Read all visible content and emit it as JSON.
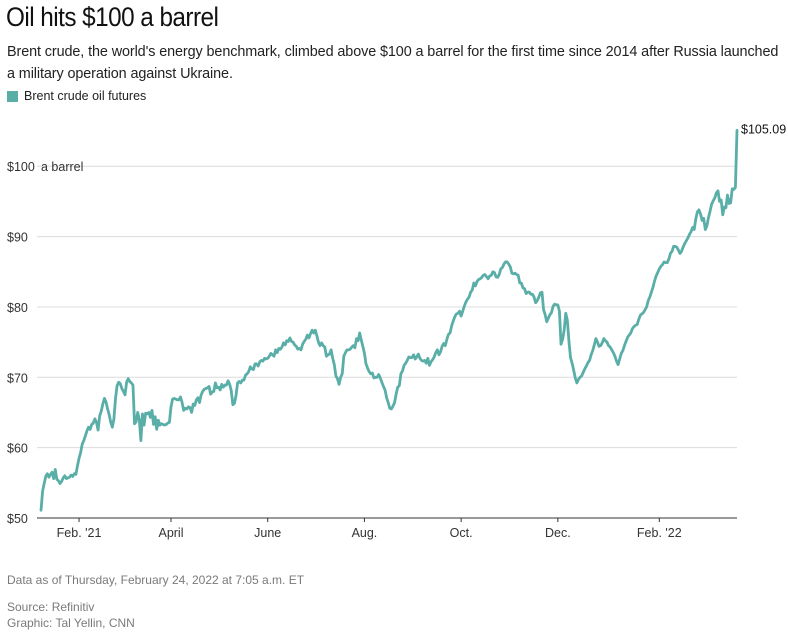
{
  "header": {
    "title": "Oil hits $100 a barrel",
    "subtitle": "Brent crude, the world's energy benchmark, climbed above $100 a barrel for the first time since 2014 after Russia launched a military operation against Ukraine."
  },
  "legend": {
    "label": "Brent crude oil futures",
    "color": "#5aaea8"
  },
  "footer": {
    "note": "Data as of Thursday, February 24, 2022 at 7:05 a.m. ET",
    "source": "Source: Refinitiv",
    "graphic": "Graphic: Tal Yellin, CNN"
  },
  "chart_data": {
    "type": "line",
    "title": "Oil hits $100 a barrel",
    "series_name": "Brent crude oil futures",
    "color": "#5aaea8",
    "ylim": [
      50,
      107
    ],
    "yticks": [
      {
        "value": 50,
        "label": "$50"
      },
      {
        "value": 60,
        "label": "$60"
      },
      {
        "value": 70,
        "label": "$70"
      },
      {
        "value": 80,
        "label": "$80"
      },
      {
        "value": 90,
        "label": "$90"
      },
      {
        "value": 100,
        "label": "$100"
      }
    ],
    "ylabel_suffix": "a barrel",
    "xticks": [
      {
        "index": 24,
        "label": "Feb. '21"
      },
      {
        "index": 82,
        "label": "April"
      },
      {
        "index": 143,
        "label": "June"
      },
      {
        "index": 204,
        "label": "Aug."
      },
      {
        "index": 265,
        "label": "Oct."
      },
      {
        "index": 326,
        "label": "Dec."
      },
      {
        "index": 390,
        "label": "Feb. '22"
      }
    ],
    "end_label": "$105.09",
    "x_start": "2021-01-04",
    "x_end": "2022-02-24",
    "values": [
      51.1,
      53.8,
      54.9,
      55.9,
      56.3,
      55.8,
      56.2,
      56.5,
      55.6,
      56.9,
      55.5,
      55.3,
      54.9,
      55.2,
      55.7,
      56.0,
      55.6,
      55.7,
      55.8,
      56.1,
      55.9,
      56.3,
      56.2,
      57.4,
      58.5,
      59.3,
      60.5,
      61.0,
      61.7,
      62.4,
      62.9,
      62.6,
      63.3,
      63.5,
      64.1,
      63.6,
      62.5,
      64.5,
      65.2,
      66.2,
      67.0,
      66.5,
      65.5,
      64.7,
      63.6,
      62.9,
      64.1,
      67.0,
      68.8,
      69.3,
      69.1,
      68.4,
      68.0,
      67.5,
      69.3,
      69.8,
      69.4,
      69.2,
      68.9,
      63.4,
      63.7,
      65.0,
      64.0,
      61.0,
      64.8,
      63.2,
      64.9,
      64.8,
      65.0,
      64.3,
      65.3,
      63.3,
      64.4,
      62.6,
      63.9,
      63.2,
      63.4,
      63.3,
      63.2,
      63.3,
      63.5,
      63.6,
      65.8,
      66.9,
      67.0,
      66.9,
      66.8,
      66.8,
      67.2,
      66.4,
      65.3,
      65.6,
      65.5,
      65.8,
      65.7,
      65.0,
      66.2,
      66.0,
      66.8,
      67.1,
      66.4,
      67.5,
      68.0,
      68.3,
      68.4,
      68.5,
      68.7,
      67.6,
      67.9,
      68.0,
      69.2,
      68.5,
      68.6,
      68.2,
      69.0,
      68.6,
      68.9,
      68.9,
      69.5,
      69.0,
      68.1,
      66.1,
      66.3,
      67.4,
      69.2,
      69.4,
      69.2,
      69.6,
      69.6,
      70.3,
      70.5,
      70.8,
      71.5,
      71.2,
      71.1,
      71.9,
      71.9,
      71.6,
      72.2,
      72.4,
      72.3,
      72.7,
      72.6,
      72.7,
      73.0,
      73.4,
      73.2,
      73.0,
      73.9,
      73.5,
      74.1,
      74.0,
      74.3,
      74.9,
      74.6,
      75.2,
      75.1,
      75.6,
      75.1,
      75.0,
      74.6,
      74.4,
      74.0,
      74.1,
      73.9,
      74.7,
      75.1,
      75.4,
      76.0,
      75.6,
      76.2,
      76.7,
      76.3,
      76.7,
      75.9,
      75.0,
      74.5,
      74.9,
      74.5,
      74.3,
      73.0,
      73.2,
      73.3,
      73.9,
      72.7,
      71.8,
      70.2,
      69.8,
      69.0,
      70.0,
      70.5,
      73.0,
      73.5,
      73.9,
      73.9,
      74.0,
      74.3,
      74.5,
      74.2,
      75.5,
      75.2,
      76.3,
      75.3,
      74.4,
      73.4,
      71.9,
      71.3,
      70.8,
      70.5,
      70.6,
      69.9,
      70.0,
      70.0,
      70.4,
      69.9,
      69.3,
      68.7,
      68.2,
      67.1,
      66.4,
      65.6,
      65.5,
      65.9,
      66.4,
      67.6,
      68.6,
      68.8,
      70.5,
      70.9,
      71.7,
      72.0,
      72.4,
      72.9,
      72.8,
      72.8,
      73.2,
      72.6,
      72.9,
      73.3,
      72.7,
      72.4,
      72.3,
      72.4,
      72.0,
      72.7,
      71.7,
      72.2,
      72.5,
      72.9,
      73.5,
      73.9,
      73.2,
      73.6,
      74.4,
      74.8,
      74.5,
      75.4,
      76.1,
      76.3,
      77.3,
      78.0,
      78.6,
      79.0,
      79.1,
      79.4,
      78.7,
      79.4,
      80.1,
      80.7,
      81.1,
      81.4,
      82.1,
      82.4,
      83.4,
      83.0,
      83.6,
      83.9,
      84.0,
      84.2,
      84.5,
      84.6,
      84.3,
      84.0,
      84.4,
      84.5,
      85.0,
      84.9,
      84.3,
      84.2,
      84.6,
      85.4,
      85.6,
      86.1,
      86.4,
      86.4,
      86.1,
      85.7,
      84.8,
      84.7,
      84.8,
      84.6,
      84.5,
      83.4,
      83.4,
      82.7,
      82.6,
      81.9,
      82.1,
      82.1,
      81.8,
      81.8,
      81.4,
      80.6,
      80.9,
      81.4,
      82.0,
      82.1,
      79.6,
      78.9,
      77.9,
      78.4,
      78.9,
      79.2,
      80.1,
      80.4,
      80.3,
      80.3,
      79.4,
      74.7,
      75.4,
      76.7,
      79.1,
      78.1,
      75.1,
      72.8,
      72.0,
      71.0,
      69.9,
      69.2,
      69.7,
      70.0,
      70.2,
      70.7,
      71.2,
      71.6,
      72.1,
      72.4,
      73.2,
      73.8,
      74.6,
      75.5,
      75.0,
      74.4,
      74.5,
      74.9,
      75.5,
      75.2,
      75.0,
      74.5,
      74.3,
      73.9,
      73.5,
      73.0,
      72.3,
      71.8,
      72.6,
      73.4,
      73.8,
      74.5,
      75.1,
      75.7,
      76.0,
      76.3,
      76.9,
      77.2,
      77.4,
      77.5,
      78.2,
      78.8,
      79.0,
      79.2,
      79.6,
      80.0,
      80.9,
      81.4,
      82.1,
      82.8,
      83.7,
      84.4,
      84.9,
      85.4,
      85.8,
      86.0,
      86.4,
      86.3,
      86.3,
      86.8,
      87.6,
      87.9,
      88.6,
      88.6,
      88.5,
      88.1,
      87.6,
      87.9,
      88.5,
      89.0,
      89.4,
      89.8,
      90.3,
      90.7,
      91.3,
      91.0,
      92.5,
      93.5,
      93.8,
      93.2,
      92.3,
      92.6,
      91.0,
      91.5,
      92.7,
      93.6,
      94.6,
      95.1,
      95.5,
      96.2,
      96.5,
      95.0,
      95.2,
      93.1,
      94.2,
      94.1,
      95.9,
      94.7,
      94.8,
      96.8,
      96.7,
      97.0,
      105.09
    ]
  }
}
